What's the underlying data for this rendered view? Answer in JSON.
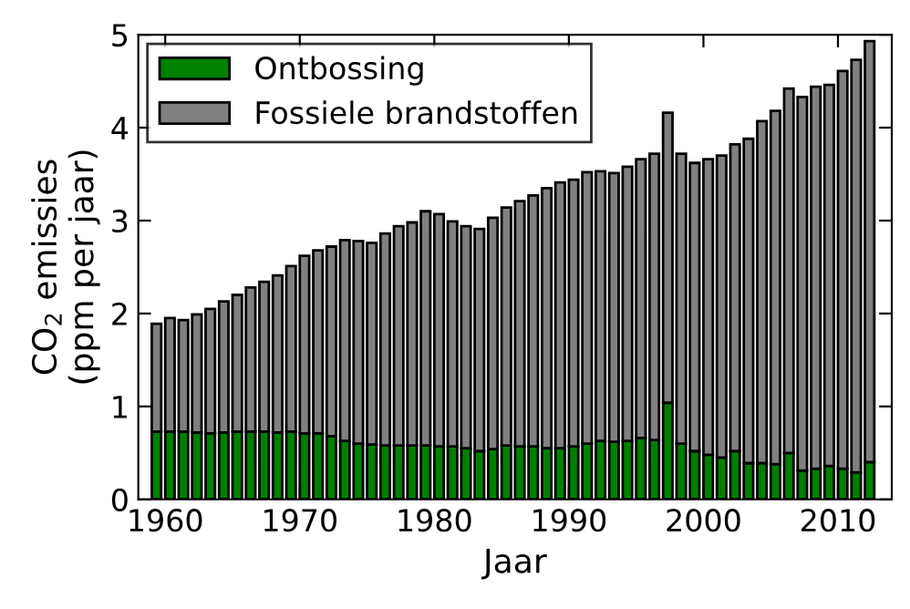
{
  "chart_data": {
    "type": "bar",
    "stacked": true,
    "xlabel": "Jaar",
    "ylabel": "CO$_{2}$ emissies\n(ppm per jaar)",
    "x": [
      1959,
      1960,
      1961,
      1962,
      1963,
      1964,
      1965,
      1966,
      1967,
      1968,
      1969,
      1970,
      1971,
      1972,
      1973,
      1974,
      1975,
      1976,
      1977,
      1978,
      1979,
      1980,
      1981,
      1982,
      1983,
      1984,
      1985,
      1986,
      1987,
      1988,
      1989,
      1990,
      1991,
      1992,
      1993,
      1994,
      1995,
      1996,
      1997,
      1998,
      1999,
      2000,
      2001,
      2002,
      2003,
      2004,
      2005,
      2006,
      2007,
      2008,
      2009,
      2010,
      2011,
      2012
    ],
    "series": [
      {
        "name": "Ontbossing",
        "color": "#008000",
        "values": [
          0.73,
          0.73,
          0.73,
          0.72,
          0.71,
          0.72,
          0.73,
          0.73,
          0.73,
          0.72,
          0.73,
          0.71,
          0.71,
          0.68,
          0.63,
          0.6,
          0.59,
          0.58,
          0.58,
          0.58,
          0.58,
          0.57,
          0.57,
          0.55,
          0.52,
          0.54,
          0.58,
          0.57,
          0.57,
          0.55,
          0.55,
          0.57,
          0.6,
          0.63,
          0.62,
          0.63,
          0.66,
          0.64,
          1.04,
          0.6,
          0.52,
          0.48,
          0.45,
          0.52,
          0.39,
          0.39,
          0.38,
          0.5,
          0.31,
          0.33,
          0.36,
          0.33,
          0.29,
          0.4
        ]
      },
      {
        "name": "Fossiele brandstoffen",
        "color": "#808080",
        "values": [
          1.16,
          1.22,
          1.2,
          1.27,
          1.34,
          1.41,
          1.47,
          1.55,
          1.61,
          1.69,
          1.78,
          1.91,
          1.97,
          2.04,
          2.16,
          2.18,
          2.17,
          2.28,
          2.36,
          2.4,
          2.52,
          2.5,
          2.42,
          2.39,
          2.39,
          2.49,
          2.56,
          2.64,
          2.7,
          2.8,
          2.86,
          2.87,
          2.92,
          2.9,
          2.89,
          2.95,
          3.0,
          3.08,
          3.12,
          3.12,
          3.1,
          3.18,
          3.25,
          3.3,
          3.49,
          3.68,
          3.8,
          3.92,
          4.02,
          4.11,
          4.1,
          4.28,
          4.44,
          4.53
        ]
      }
    ],
    "xlim": [
      1958,
      2014
    ],
    "xticks": [
      1960,
      1970,
      1980,
      1990,
      2000,
      2010
    ],
    "ylim": [
      0,
      5
    ],
    "yticks": [
      0,
      1,
      2,
      3,
      4,
      5
    ],
    "legend": "top left",
    "grid": false
  }
}
